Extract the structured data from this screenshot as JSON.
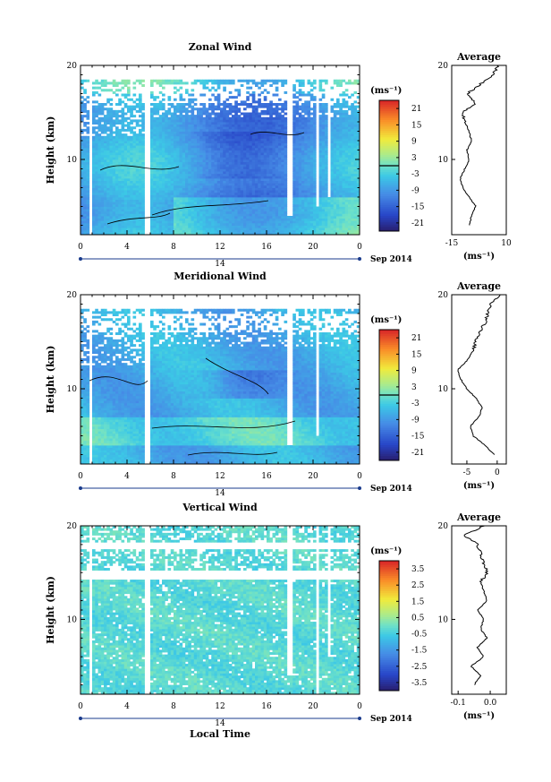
{
  "x_ticks": [
    "0",
    "4",
    "8",
    "12",
    "16",
    "20",
    "0"
  ],
  "x_day_label": "14",
  "x_date_label": "Sep 2014",
  "y_label": "Height (km)",
  "y_ticks": [
    "20",
    "10"
  ],
  "xlabel": "Local Time",
  "colorbar_unit": "(ms⁻¹)",
  "profile_xlabel": "(ms⁻¹)",
  "profile_title": "Average",
  "chart_data": [
    {
      "type": "heatmap",
      "title": "Zonal Wind",
      "ylabel": "Height (km)",
      "xlim": [
        0,
        24
      ],
      "ylim": [
        2,
        20
      ],
      "colorbar": {
        "ticks": [
          "21",
          "15",
          "9",
          "3",
          "-3",
          "-9",
          "-15",
          "-21"
        ],
        "range": [
          -24,
          24
        ],
        "zero_line": 0
      },
      "profile": {
        "title": "Average",
        "xlim": [
          -15,
          10
        ],
        "xticks": [
          "-15",
          "10"
        ],
        "yticks": [
          "20",
          "10"
        ],
        "heights": [
          3,
          4,
          5,
          6,
          7,
          8,
          9,
          10,
          11,
          12,
          13,
          14,
          15,
          16,
          17,
          18,
          19,
          20
        ],
        "values": [
          -7,
          -6,
          -4,
          -7,
          -10,
          -11,
          -9,
          -7,
          -8,
          -6,
          -7,
          -9,
          -10,
          -4,
          -8,
          -2,
          4,
          6
        ]
      }
    },
    {
      "type": "heatmap",
      "title": "Meridional Wind",
      "ylabel": "Height (km)",
      "xlim": [
        0,
        24
      ],
      "ylim": [
        2,
        20
      ],
      "colorbar": {
        "ticks": [
          "21",
          "15",
          "9",
          "3",
          "-3",
          "-9",
          "-15",
          "-21"
        ],
        "range": [
          -24,
          24
        ],
        "zero_line": 0
      },
      "profile": {
        "title": "Average",
        "xlim": [
          -7.5,
          1.5
        ],
        "xticks": [
          "-5",
          "0"
        ],
        "yticks": [
          "20",
          "10"
        ],
        "heights": [
          3,
          4,
          5,
          6,
          7,
          8,
          9,
          10,
          11,
          12,
          13,
          14,
          15,
          16,
          17,
          18,
          19,
          20
        ],
        "values": [
          -0.5,
          -2,
          -4,
          -4.5,
          -3,
          -2.5,
          -3.5,
          -5,
          -6,
          -6.5,
          -5,
          -4,
          -3.5,
          -3,
          -2,
          -1.5,
          -1,
          0.5
        ]
      }
    },
    {
      "type": "heatmap",
      "title": "Vertical Wind",
      "ylabel": "Height (km)",
      "xlabel": "Local Time",
      "xlim": [
        0,
        24
      ],
      "ylim": [
        2,
        20
      ],
      "colorbar": {
        "ticks": [
          "3.5",
          "2.5",
          "1.5",
          "0.5",
          "-0.5",
          "-1.5",
          "-2.5",
          "-3.5"
        ],
        "range": [
          -4,
          4
        ]
      },
      "profile": {
        "title": "Average",
        "xlim": [
          -0.12,
          0.05
        ],
        "xticks": [
          "-0.1",
          "0.0"
        ],
        "yticks": [
          "20",
          "10"
        ],
        "heights": [
          3,
          4,
          5,
          6,
          7,
          8,
          9,
          10,
          11,
          12,
          13,
          14,
          15,
          16,
          17,
          18,
          19,
          20
        ],
        "values": [
          -0.05,
          -0.03,
          -0.06,
          -0.02,
          -0.04,
          -0.01,
          -0.03,
          -0.02,
          -0.04,
          -0.01,
          -0.02,
          -0.03,
          -0.01,
          -0.02,
          -0.03,
          -0.04,
          -0.08,
          -0.02
        ]
      }
    }
  ]
}
